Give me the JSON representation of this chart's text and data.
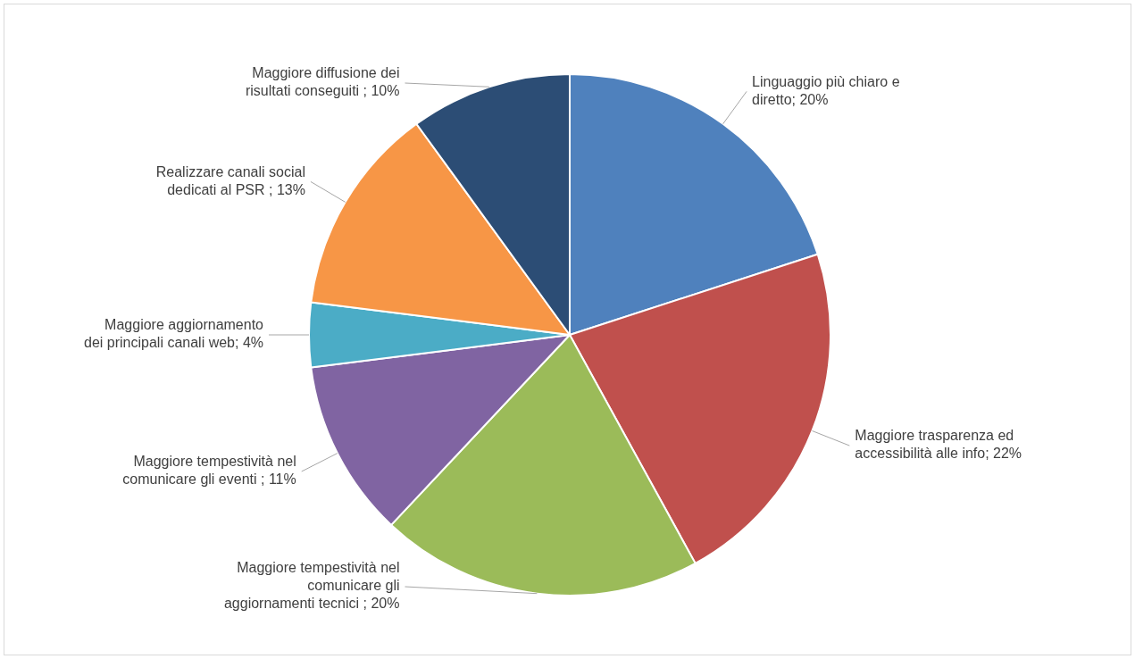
{
  "chart_data": {
    "type": "pie",
    "categories": [
      "Linguaggio più chiaro e diretto",
      "Maggiore trasparenza ed accessibilità alle info",
      "Maggiore tempestività nel comunicare gli aggiornamenti tecnici",
      "Maggiore tempestività nel comunicare gli eventi",
      "Maggiore aggiornamento dei principali canali web",
      "Realizzare canali social dedicati al PSR",
      "Maggiore diffusione dei risultati conseguiti"
    ],
    "value_labels": [
      "; 20%",
      "; 22%",
      " ; 20%",
      " ; 11%",
      "; 4%",
      " ; 13%",
      " ; 10%"
    ],
    "values": [
      20,
      22,
      20,
      11,
      4,
      13,
      10
    ],
    "colors": [
      "#4f81bd",
      "#c0504d",
      "#9bbb59",
      "#8064a2",
      "#4bacc6",
      "#f79646",
      "#2c4d75"
    ],
    "legend": false
  }
}
